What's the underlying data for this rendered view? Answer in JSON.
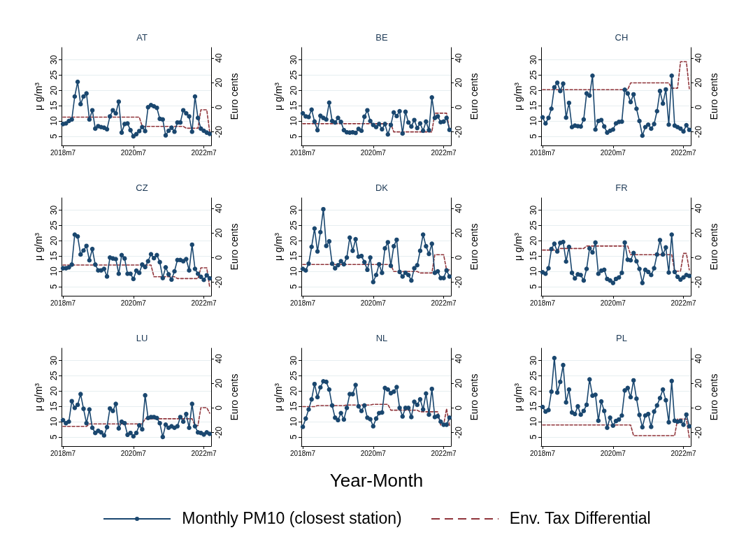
{
  "chart_data": [
    {
      "type": "line",
      "title": "AT",
      "ylabel": "μ g/m³",
      "y2label": "Euro cents",
      "categories": [
        "2018m7",
        null,
        null,
        null,
        null,
        null,
        null,
        null,
        null,
        null,
        null,
        null,
        null,
        null,
        null,
        null,
        null,
        null,
        null,
        null,
        null,
        null,
        null,
        null,
        "2020m7",
        null,
        null,
        null,
        null,
        null,
        null,
        null,
        null,
        null,
        null,
        null,
        null,
        null,
        null,
        null,
        null,
        null,
        null,
        null,
        null,
        null,
        null,
        null,
        "2022m7",
        null,
        null
      ],
      "ylim": [
        2,
        34
      ],
      "yticks": [
        5,
        10,
        15,
        20,
        25,
        30
      ],
      "y2lim": [
        -31,
        48.5
      ],
      "y2ticks": [
        -20,
        0,
        20,
        40
      ],
      "grid": "y",
      "series": [
        {
          "color": "#1a476f",
          "marker": "circle",
          "line_style": "solid",
          "values": [
            9,
            9.2,
            10,
            10.5,
            18,
            22.8,
            15.5,
            18,
            19,
            10.5,
            13.5,
            7.5,
            8.3,
            8,
            7.8,
            7.3,
            11.5,
            13.5,
            12.5,
            16.3,
            6.2,
            9,
            9.2,
            7,
            5,
            5.7,
            6.7,
            8,
            6.7,
            14.5,
            15.2,
            14.8,
            14.3,
            10.7,
            10.5,
            5.3,
            6.8,
            7.8,
            6.5,
            9.5,
            9.5,
            13.5,
            12.5,
            11.5,
            6.5,
            18,
            11,
            7.5,
            6.8,
            6.2,
            5.8
          ]
        },
        {
          "color": "#90353b",
          "marker": "none",
          "line_style": "dashed",
          "axis": "y2",
          "values": [
            -8,
            -8,
            -8,
            -8,
            -8,
            -8,
            -8,
            -8,
            -8,
            -8,
            -8,
            -8,
            -8,
            -8,
            -8,
            -8,
            -8,
            -8,
            -8,
            -8,
            -8,
            -8,
            -8,
            -8,
            -8,
            -8,
            -8,
            -15.5,
            -15.5,
            -15.5,
            -15.5,
            -15.5,
            -15.5,
            -15.5,
            -15.5,
            -15.5,
            -15.5,
            -15.5,
            -15.5,
            -15.5,
            -15.5,
            -15.5,
            -17,
            -17,
            -17,
            -17,
            -17,
            -2,
            -2,
            -2,
            -20
          ]
        }
      ]
    },
    {
      "type": "line",
      "title": "BE",
      "ylabel": "μ g/m³",
      "y2label": "Euro cents",
      "categories": [
        "2018m7",
        null,
        null,
        null,
        null,
        null,
        null,
        null,
        null,
        null,
        null,
        null,
        null,
        null,
        null,
        null,
        null,
        null,
        null,
        null,
        null,
        null,
        null,
        null,
        "2020m7",
        null,
        null,
        null,
        null,
        null,
        null,
        null,
        null,
        null,
        null,
        null,
        null,
        null,
        null,
        null,
        null,
        null,
        null,
        null,
        null,
        null,
        null,
        null,
        "2022m7",
        null,
        null
      ],
      "ylim": [
        2,
        34
      ],
      "yticks": [
        5,
        10,
        15,
        20,
        25,
        30
      ],
      "y2lim": [
        -31,
        48.5
      ],
      "y2ticks": [
        -20,
        0,
        20,
        40
      ],
      "grid": "y",
      "series": [
        {
          "color": "#1a476f",
          "marker": "circle",
          "line_style": "solid",
          "values": [
            12.5,
            11.5,
            11.3,
            13.7,
            9.8,
            7,
            11.7,
            11,
            10.5,
            16,
            10,
            9.5,
            11,
            9.7,
            7,
            6.3,
            6.2,
            6.3,
            6.1,
            7.4,
            6.8,
            11.4,
            13.5,
            10,
            8.7,
            8,
            9,
            7.3,
            9,
            5.6,
            8.7,
            12.8,
            11.6,
            13.2,
            5.9,
            13,
            9.5,
            8.2,
            10.3,
            7.7,
            9.2,
            6.8,
            9.8,
            7,
            17.7,
            11,
            11.5,
            9.6,
            9.8,
            11,
            7.1
          ]
        },
        {
          "color": "#90353b",
          "marker": "none",
          "line_style": "dashed",
          "axis": "y2",
          "values": [
            -13.3,
            -13.3,
            -13.3,
            -13.3,
            -13.3,
            -13.3,
            -13.3,
            -13.3,
            -13.3,
            -13.3,
            -13.3,
            -13.3,
            -13.3,
            -13.3,
            -13.3,
            -13.3,
            -13.3,
            -13.3,
            -13.3,
            -13.3,
            -13.3,
            -13.3,
            -13.3,
            -13.3,
            -13.3,
            -13.3,
            -13.3,
            -13.3,
            -13.3,
            -13.3,
            -13.3,
            -20,
            -20,
            -20,
            -20,
            -20,
            -20,
            -20,
            -20,
            -20,
            -20,
            -20,
            -20,
            -20,
            -20,
            -4.8,
            -4.8,
            -4.8,
            -4.8,
            -4.8,
            -18
          ]
        }
      ]
    },
    {
      "type": "line",
      "title": "CH",
      "ylabel": "μ g/m³",
      "y2label": "Euro cents",
      "categories": [
        "2018m7",
        null,
        null,
        null,
        null,
        null,
        null,
        null,
        null,
        null,
        null,
        null,
        null,
        null,
        null,
        null,
        null,
        null,
        null,
        null,
        null,
        null,
        null,
        null,
        "2020m7",
        null,
        null,
        null,
        null,
        null,
        null,
        null,
        null,
        null,
        null,
        null,
        null,
        null,
        null,
        null,
        null,
        null,
        null,
        null,
        null,
        null,
        null,
        null,
        "2022m7",
        null,
        null
      ],
      "ylim": [
        2,
        34
      ],
      "yticks": [
        5,
        10,
        15,
        20,
        25,
        30
      ],
      "y2lim": [
        -31,
        48.5
      ],
      "y2ticks": [
        -20,
        0,
        20,
        40
      ],
      "grid": "y",
      "series": [
        {
          "color": "#1a476f",
          "marker": "circle",
          "line_style": "solid",
          "values": [
            11.2,
            9.2,
            11,
            14,
            21,
            22.5,
            19.8,
            22.2,
            11.1,
            15.9,
            8,
            8.5,
            8.3,
            8.2,
            10.5,
            19,
            18.3,
            24.8,
            7.2,
            10,
            10.3,
            8.2,
            6.2,
            6.8,
            7.2,
            9.2,
            9.7,
            9.8,
            20.2,
            19,
            16.2,
            18.7,
            14,
            10,
            5.2,
            8,
            8.8,
            7.5,
            9,
            13.2,
            19.8,
            15.7,
            20.3,
            8.8,
            24.8,
            8.5,
            8,
            7.5,
            6.6,
            8.6,
            7.1
          ]
        },
        {
          "color": "#90353b",
          "marker": "none",
          "line_style": "dashed",
          "axis": "y2",
          "values": [
            14.3,
            14.3,
            14.3,
            14.3,
            14.3,
            14.3,
            14.3,
            14.3,
            14.3,
            14.3,
            14.3,
            14.3,
            14.3,
            14.3,
            14.3,
            14.3,
            14.3,
            14.3,
            14.3,
            14.3,
            14.3,
            14.3,
            14.3,
            14.3,
            14.3,
            14.3,
            14.3,
            14.3,
            14.3,
            14.3,
            19.8,
            19.8,
            19.8,
            19.8,
            19.8,
            19.8,
            19.8,
            19.8,
            19.8,
            19.8,
            19.8,
            19.8,
            19.8,
            19.8,
            15.5,
            15.5,
            15.5,
            37,
            37,
            37,
            15
          ]
        }
      ]
    },
    {
      "type": "line",
      "title": "CZ",
      "ylabel": "μ g/m³",
      "y2label": "Euro cents",
      "categories": [
        "2018m7",
        null,
        null,
        null,
        null,
        null,
        null,
        null,
        null,
        null,
        null,
        null,
        null,
        null,
        null,
        null,
        null,
        null,
        null,
        null,
        null,
        null,
        null,
        null,
        "2020m7",
        null,
        null,
        null,
        null,
        null,
        null,
        null,
        null,
        null,
        null,
        null,
        null,
        null,
        null,
        null,
        null,
        null,
        null,
        null,
        null,
        null,
        null,
        null,
        "2022m7",
        null,
        null
      ],
      "ylim": [
        2,
        34
      ],
      "yticks": [
        5,
        10,
        15,
        20,
        25,
        30
      ],
      "y2lim": [
        -31,
        48.5
      ],
      "y2ticks": [
        -20,
        0,
        20,
        40
      ],
      "grid": "y",
      "series": [
        {
          "color": "#1a476f",
          "marker": "circle",
          "line_style": "solid",
          "values": [
            11,
            11,
            11.3,
            12.2,
            22,
            21.4,
            15.5,
            16.8,
            18.3,
            13.6,
            17.3,
            12.2,
            10.3,
            10.3,
            10.8,
            8.3,
            14.5,
            14.2,
            14,
            9.2,
            15.3,
            14.2,
            9.2,
            9.2,
            7.5,
            10.2,
            9.5,
            12.2,
            11.4,
            13.3,
            15.6,
            14.3,
            15.3,
            13,
            7.8,
            11.3,
            9,
            7.3,
            10,
            13.7,
            13.7,
            13.3,
            14,
            10.3,
            18.7,
            10.8,
            9.2,
            8.2,
            7.2,
            8.7,
            7.7
          ]
        },
        {
          "color": "#90353b",
          "marker": "none",
          "line_style": "dashed",
          "axis": "y2",
          "values": [
            -6,
            -6,
            -6,
            -6,
            -6,
            -6,
            -6,
            -6,
            -6,
            -6,
            -6,
            -6,
            -6,
            -6,
            -6,
            -6,
            -6,
            -6,
            -6,
            -6,
            -6,
            -6,
            -6,
            -6,
            -6,
            -6,
            -6,
            -6,
            -6,
            -6,
            -6,
            -15.5,
            -15.5,
            -15.5,
            -15.5,
            -15.5,
            -15.5,
            -15.5,
            -15.5,
            -17,
            -17,
            -17,
            -17,
            -17,
            -17,
            -17,
            -17,
            -8.3,
            -8.3,
            -8.3,
            -24
          ]
        }
      ]
    },
    {
      "type": "line",
      "title": "DK",
      "ylabel": "μ g/m³",
      "y2label": "Euro cents",
      "categories": [
        "2018m7",
        null,
        null,
        null,
        null,
        null,
        null,
        null,
        null,
        null,
        null,
        null,
        null,
        null,
        null,
        null,
        null,
        null,
        null,
        null,
        null,
        null,
        null,
        null,
        "2020m7",
        null,
        null,
        null,
        null,
        null,
        null,
        null,
        null,
        null,
        null,
        null,
        null,
        null,
        null,
        null,
        null,
        null,
        null,
        null,
        null,
        null,
        null,
        null,
        "2022m7",
        null,
        null
      ],
      "ylim": [
        2,
        34
      ],
      "yticks": [
        5,
        10,
        15,
        20,
        25,
        30
      ],
      "y2lim": [
        -31,
        48.5
      ],
      "y2ticks": [
        -20,
        0,
        20,
        40
      ],
      "grid": "y",
      "series": [
        {
          "color": "#1a476f",
          "marker": "circle",
          "line_style": "solid",
          "values": [
            10.8,
            10.3,
            12.5,
            18,
            24,
            16.5,
            22.8,
            30.3,
            18.3,
            19.8,
            12.5,
            11,
            12,
            13.3,
            12.3,
            14.5,
            21,
            16.7,
            20.5,
            14.8,
            15,
            13,
            10.5,
            14.5,
            6.5,
            8.8,
            12.3,
            9.5,
            17.5,
            19.5,
            11.8,
            18.2,
            20.3,
            9.8,
            8.3,
            9.5,
            8.8,
            7,
            11,
            12,
            16.7,
            22,
            18.2,
            15.7,
            19,
            9.5,
            10,
            7.8,
            7.8,
            10.3,
            8.3
          ]
        },
        {
          "color": "#90353b",
          "marker": "none",
          "line_style": "dashed",
          "axis": "y2",
          "values": [
            -5.6,
            -5.6,
            -5.6,
            -5.6,
            -5.6,
            -5.6,
            -5.6,
            -5.6,
            -5.6,
            -5.6,
            -5.6,
            -5.6,
            -5.6,
            -5.6,
            -5.6,
            -5.6,
            -5.6,
            -5.6,
            -5.6,
            -5.6,
            -5.6,
            -5.6,
            -5.6,
            -5.6,
            -5.6,
            -5.6,
            -5.6,
            -5.6,
            -5.6,
            -5.6,
            -5.6,
            -11.3,
            -11.3,
            -11.3,
            -11.3,
            -11.3,
            -11.3,
            -11.3,
            -11.3,
            -11.3,
            -12.5,
            -12.5,
            -12.5,
            -12.5,
            -12.5,
            2.4,
            2.4,
            2.4,
            2.4,
            -10,
            -10
          ]
        }
      ]
    },
    {
      "type": "line",
      "title": "FR",
      "ylabel": "μ g/m³",
      "y2label": "Euro cents",
      "categories": [
        "2018m7",
        null,
        null,
        null,
        null,
        null,
        null,
        null,
        null,
        null,
        null,
        null,
        null,
        null,
        null,
        null,
        null,
        null,
        null,
        null,
        null,
        null,
        null,
        null,
        "2020m7",
        null,
        null,
        null,
        null,
        null,
        null,
        null,
        null,
        null,
        null,
        null,
        null,
        null,
        null,
        null,
        null,
        null,
        null,
        null,
        null,
        null,
        null,
        null,
        "2022m7",
        null,
        null
      ],
      "ylim": [
        2,
        34
      ],
      "yticks": [
        5,
        10,
        15,
        20,
        25,
        30
      ],
      "y2lim": [
        -31,
        48.5
      ],
      "y2ticks": [
        -20,
        0,
        20,
        40
      ],
      "grid": "y",
      "series": [
        {
          "color": "#1a476f",
          "marker": "circle",
          "line_style": "solid",
          "values": [
            9.7,
            9.2,
            11,
            17.3,
            19,
            16.5,
            19.3,
            19.6,
            13.2,
            18,
            9.5,
            7.7,
            9,
            8.8,
            7,
            10.8,
            17.5,
            16.2,
            19.4,
            9.2,
            10.2,
            10.5,
            7.5,
            7,
            6.2,
            7.5,
            8,
            9.5,
            19.4,
            13.8,
            13.6,
            16,
            13.3,
            10.8,
            6.2,
            10.5,
            9.8,
            8.8,
            11,
            15.5,
            20.2,
            15.5,
            17.8,
            9.6,
            22,
            9.8,
            8.2,
            7.3,
            8,
            8.8,
            8.5
          ]
        },
        {
          "color": "#90353b",
          "marker": "none",
          "line_style": "dashed",
          "axis": "y2",
          "values": [
            6.1,
            6.1,
            6.1,
            6.1,
            6.1,
            6.1,
            7.4,
            7.4,
            7.4,
            7.4,
            7.4,
            7.4,
            7.4,
            7.4,
            7.4,
            9.4,
            9.4,
            9.4,
            9.4,
            9.4,
            9.4,
            9.4,
            9.4,
            9.4,
            9.4,
            9.4,
            9.4,
            9.4,
            9.4,
            9.4,
            2.4,
            2.4,
            2.4,
            2.4,
            2.4,
            2.4,
            2.4,
            2.4,
            2.4,
            2.4,
            2.4,
            2.4,
            2.4,
            2.4,
            2.4,
            -11,
            -11,
            -11,
            3.4,
            3.4,
            -10
          ]
        }
      ]
    },
    {
      "type": "line",
      "title": "LU",
      "ylabel": "μ g/m³",
      "y2label": "Euro cents",
      "categories": [
        "2018m7",
        null,
        null,
        null,
        null,
        null,
        null,
        null,
        null,
        null,
        null,
        null,
        null,
        null,
        null,
        null,
        null,
        null,
        null,
        null,
        null,
        null,
        null,
        null,
        "2020m7",
        null,
        null,
        null,
        null,
        null,
        null,
        null,
        null,
        null,
        null,
        null,
        null,
        null,
        null,
        null,
        null,
        null,
        null,
        null,
        null,
        null,
        null,
        null,
        "2022m7",
        null,
        null
      ],
      "ylim": [
        2,
        34
      ],
      "yticks": [
        5,
        10,
        15,
        20,
        25,
        30
      ],
      "y2lim": [
        -31,
        48.5
      ],
      "y2ticks": [
        -20,
        0,
        20,
        40
      ],
      "grid": "y",
      "series": [
        {
          "color": "#1a476f",
          "marker": "circle",
          "line_style": "solid",
          "values": [
            10.5,
            9.5,
            10,
            16.7,
            14.5,
            15.5,
            19,
            14.2,
            9.5,
            14,
            8,
            6.3,
            7,
            6.5,
            5.5,
            8.2,
            14.3,
            13.5,
            15.8,
            7.8,
            10,
            9.5,
            5.7,
            6.3,
            5.2,
            6.3,
            8.8,
            7.5,
            18.6,
            11.2,
            11.5,
            11.5,
            11.2,
            9.5,
            5,
            9,
            8,
            8.5,
            8,
            8.5,
            11.5,
            10,
            12.5,
            8,
            15.8,
            8.5,
            6.5,
            6.3,
            5.8,
            6.5,
            6
          ]
        },
        {
          "color": "#90353b",
          "marker": "none",
          "line_style": "dashed",
          "axis": "y2",
          "values": [
            -15,
            -15,
            -15,
            -15,
            -15,
            -15,
            -15,
            -15,
            -15,
            -13,
            -13,
            -13,
            -13,
            -13,
            -13,
            -13,
            -13,
            -13,
            -13,
            -13,
            -13,
            -13,
            -13,
            -13,
            -13,
            -13,
            -13,
            -13,
            -8.8,
            -8.8,
            -8.8,
            -8.8,
            -8.8,
            -8.8,
            -8.8,
            -8.8,
            -8.8,
            -8.8,
            -8.8,
            -8.8,
            -8.8,
            -8.8,
            -8.8,
            -8.8,
            -8.8,
            -14.3,
            -14.3,
            0.2,
            0.2,
            0.2,
            -4.3
          ]
        }
      ]
    },
    {
      "type": "line",
      "title": "NL",
      "xlabel": "Year-Month",
      "ylabel": "μ g/m³",
      "y2label": "Euro cents",
      "legend": "bottom",
      "categories": [
        "2018m7",
        null,
        null,
        null,
        null,
        null,
        null,
        null,
        null,
        null,
        null,
        null,
        null,
        null,
        null,
        null,
        null,
        null,
        null,
        null,
        null,
        null,
        null,
        null,
        "2020m7",
        null,
        null,
        null,
        null,
        null,
        null,
        null,
        null,
        null,
        null,
        null,
        null,
        null,
        null,
        null,
        null,
        null,
        null,
        null,
        null,
        null,
        null,
        null,
        "2022m7",
        null,
        null
      ],
      "ylim": [
        2,
        34
      ],
      "yticks": [
        5,
        10,
        15,
        20,
        25,
        30
      ],
      "y2lim": [
        -31,
        48.5
      ],
      "y2ticks": [
        -20,
        0,
        20,
        40
      ],
      "grid": "y",
      "series": [
        {
          "name": "Monthly PM10 (closest station)",
          "color": "#1a476f",
          "marker": "circle",
          "line_style": "solid",
          "values": [
            8.3,
            11,
            14,
            17.3,
            22.3,
            18,
            21.2,
            23.2,
            23,
            20.5,
            15.3,
            11.3,
            10.5,
            12.8,
            10.7,
            14.5,
            19,
            19,
            22,
            15,
            13.5,
            15.3,
            11.3,
            10.8,
            8.5,
            11,
            12.8,
            13,
            21,
            20.5,
            19.3,
            19.8,
            21.3,
            14.5,
            11.7,
            14.5,
            14.5,
            11.5,
            16.5,
            15.5,
            17.3,
            14,
            19.2,
            12.3,
            20.7,
            11.5,
            11.8,
            10,
            9,
            9,
            11.3
          ]
        },
        {
          "name": "Env. Tax Differential",
          "color": "#90353b",
          "marker": "none",
          "line_style": "dashed",
          "axis": "y2",
          "values": [
            1.1,
            1.1,
            1.1,
            1.1,
            1.1,
            1.9,
            1.9,
            1.9,
            1.9,
            1.9,
            1.9,
            1.9,
            1.9,
            1.9,
            1.9,
            2.4,
            2.4,
            2.4,
            2.4,
            2.4,
            2.4,
            2.4,
            2.4,
            2.4,
            2.9,
            2.9,
            2.9,
            2.9,
            2.9,
            2.9,
            -1.8,
            -1.8,
            -1.8,
            -1.8,
            -1.8,
            -1.8,
            -1.8,
            -1.8,
            -1.8,
            -1.8,
            -3.1,
            -3.1,
            -3.1,
            -3.1,
            -3.1,
            -3.1,
            -3.1,
            -13.8,
            -13.8,
            -0.6,
            -14.3
          ]
        }
      ]
    },
    {
      "type": "line",
      "title": "PL",
      "ylabel": "μ g/m³",
      "y2label": "Euro cents",
      "categories": [
        "2018m7",
        null,
        null,
        null,
        null,
        null,
        null,
        null,
        null,
        null,
        null,
        null,
        null,
        null,
        null,
        null,
        null,
        null,
        null,
        null,
        null,
        null,
        null,
        null,
        "2020m7",
        null,
        null,
        null,
        null,
        null,
        null,
        null,
        null,
        null,
        null,
        null,
        null,
        null,
        null,
        null,
        null,
        null,
        null,
        null,
        null,
        null,
        null,
        null,
        "2022m7",
        null,
        null
      ],
      "ylim": [
        2,
        34
      ],
      "yticks": [
        5,
        10,
        15,
        20,
        25,
        30
      ],
      "y2lim": [
        -31,
        48.5
      ],
      "y2ticks": [
        -20,
        0,
        20,
        40
      ],
      "grid": "y",
      "series": [
        {
          "color": "#1a476f",
          "marker": "circle",
          "line_style": "solid",
          "values": [
            14.8,
            13.3,
            13.8,
            19.8,
            30.8,
            19.5,
            23,
            28.5,
            16.3,
            20.5,
            13,
            12.5,
            15,
            12.3,
            13.5,
            15.5,
            23.8,
            18.5,
            18.8,
            10.3,
            16.6,
            13.5,
            8,
            11.3,
            8.7,
            10.2,
            10.7,
            12,
            20.2,
            21,
            18,
            23.5,
            17.5,
            12.2,
            8.2,
            12,
            12.5,
            8.3,
            13.3,
            15.3,
            17.7,
            20.5,
            17,
            9.8,
            23.3,
            10.3,
            10,
            10.2,
            9,
            12.3,
            8.5
          ]
        },
        {
          "color": "#90353b",
          "marker": "none",
          "line_style": "dashed",
          "axis": "y2",
          "values": [
            -13.8,
            -13.8,
            -13.8,
            -13.8,
            -13.8,
            -13.8,
            -13.8,
            -13.8,
            -13.8,
            -13.8,
            -13.8,
            -13.8,
            -13.8,
            -13.8,
            -13.8,
            -13.8,
            -13.8,
            -13.8,
            -13.8,
            -13.8,
            -13.8,
            -13.8,
            -13.8,
            -13.8,
            -13.8,
            -13.8,
            -13.8,
            -13.8,
            -13.8,
            -13.8,
            -13.8,
            -22.5,
            -22.5,
            -22.5,
            -22.5,
            -22.5,
            -22.5,
            -22.5,
            -22.5,
            -22.5,
            -22.5,
            -22.5,
            -22.5,
            -22.5,
            -22.5,
            -22.5,
            -9,
            -9,
            -9,
            -9,
            -24.3
          ]
        }
      ]
    }
  ]
}
